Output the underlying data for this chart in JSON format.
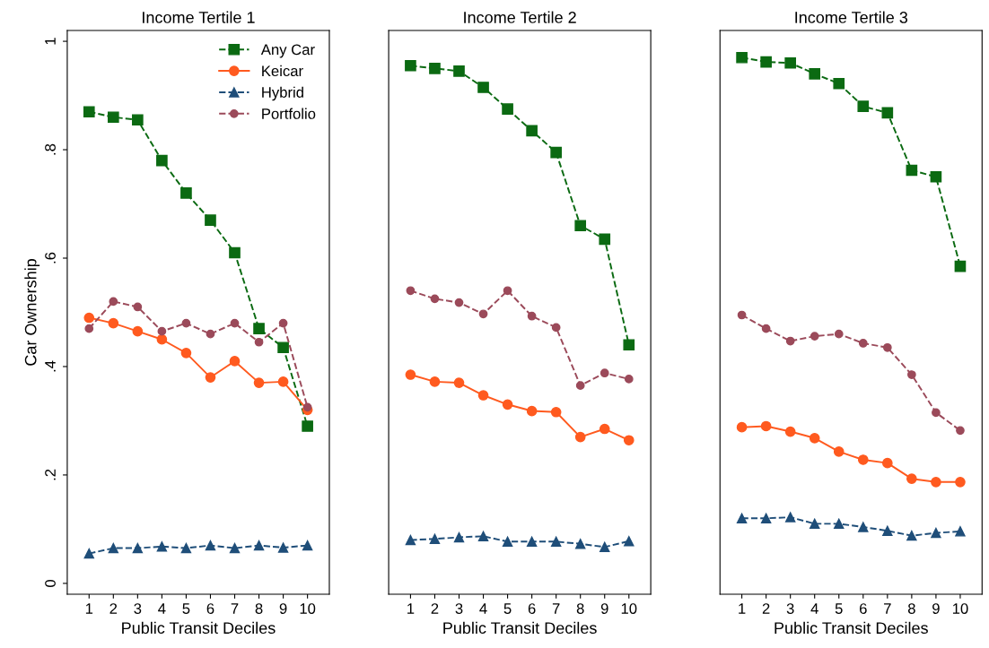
{
  "chart_data": [
    {
      "type": "line",
      "title": "Income Tertile 1",
      "xlabel": "Public Transit Deciles",
      "ylabel": "Car Ownership",
      "x": [
        1,
        2,
        3,
        4,
        5,
        6,
        7,
        8,
        9,
        10
      ],
      "xlim": [
        0.1,
        10.9
      ],
      "xticks": [
        1,
        2,
        3,
        4,
        5,
        6,
        7,
        8,
        9,
        10
      ],
      "ylim": [
        -0.02,
        1.02
      ],
      "yticks": [
        {
          "value": 0,
          "label": "0"
        },
        {
          "value": 0.2,
          "label": ".2"
        },
        {
          "value": 0.4,
          "label": ".4"
        },
        {
          "value": 0.6,
          "label": ".6"
        },
        {
          "value": 0.8,
          "label": ".8"
        },
        {
          "value": 1,
          "label": "1"
        }
      ],
      "grid": false,
      "legend": "top right",
      "series": [
        {
          "name": "Any Car",
          "color": "#0b6a12",
          "marker": "square",
          "line_style": "dashed",
          "values": [
            0.87,
            0.86,
            0.855,
            0.78,
            0.72,
            0.67,
            0.61,
            0.47,
            0.435,
            0.29
          ]
        },
        {
          "name": "Keicar",
          "color": "#ff5a1f",
          "marker": "circle",
          "line_style": "solid",
          "values": [
            0.49,
            0.48,
            0.465,
            0.45,
            0.425,
            0.38,
            0.41,
            0.37,
            0.372,
            0.32
          ]
        },
        {
          "name": "Hybrid",
          "color": "#1f4e79",
          "marker": "triangle",
          "line_style": "dashed",
          "values": [
            0.055,
            0.065,
            0.065,
            0.068,
            0.065,
            0.07,
            0.065,
            0.07,
            0.066,
            0.07
          ]
        },
        {
          "name": "Portfolio",
          "color": "#9b4a5a",
          "marker": "circle",
          "line_style": "dashed",
          "values": [
            0.47,
            0.52,
            0.51,
            0.465,
            0.48,
            0.46,
            0.48,
            0.445,
            0.48,
            0.325
          ]
        }
      ]
    },
    {
      "type": "line",
      "title": "Income Tertile 2",
      "xlabel": "Public Transit Deciles",
      "x": [
        1,
        2,
        3,
        4,
        5,
        6,
        7,
        8,
        9,
        10
      ],
      "xlim": [
        0.1,
        10.9
      ],
      "xticks": [
        1,
        2,
        3,
        4,
        5,
        6,
        7,
        8,
        9,
        10
      ],
      "ylim": [
        -0.02,
        1.02
      ],
      "tick_labels": "x",
      "grid": false,
      "series": [
        {
          "color": "#0b6a12",
          "marker": "square",
          "line_style": "dashed",
          "values": [
            0.955,
            0.95,
            0.945,
            0.915,
            0.875,
            0.835,
            0.795,
            0.66,
            0.635,
            0.44
          ]
        },
        {
          "color": "#ff5a1f",
          "marker": "circle",
          "line_style": "solid",
          "values": [
            0.385,
            0.372,
            0.37,
            0.347,
            0.33,
            0.318,
            0.316,
            0.27,
            0.285,
            0.264
          ]
        },
        {
          "color": "#1f4e79",
          "marker": "triangle",
          "line_style": "dashed",
          "values": [
            0.08,
            0.082,
            0.085,
            0.087,
            0.077,
            0.077,
            0.077,
            0.073,
            0.067,
            0.078
          ]
        },
        {
          "color": "#9b4a5a",
          "marker": "circle",
          "line_style": "dashed",
          "values": [
            0.54,
            0.525,
            0.518,
            0.497,
            0.54,
            0.493,
            0.472,
            0.365,
            0.388,
            0.377
          ]
        }
      ]
    },
    {
      "type": "line",
      "title": "Income Tertile 3",
      "xlabel": "Public Transit Deciles",
      "x": [
        1,
        2,
        3,
        4,
        5,
        6,
        7,
        8,
        9,
        10
      ],
      "xlim": [
        0.1,
        10.9
      ],
      "xticks": [
        1,
        2,
        3,
        4,
        5,
        6,
        7,
        8,
        9,
        10
      ],
      "ylim": [
        -0.02,
        1.02
      ],
      "tick_labels": "x",
      "grid": false,
      "series": [
        {
          "color": "#0b6a12",
          "marker": "square",
          "line_style": "dashed",
          "values": [
            0.97,
            0.962,
            0.96,
            0.94,
            0.922,
            0.88,
            0.868,
            0.762,
            0.75,
            0.585
          ]
        },
        {
          "color": "#ff5a1f",
          "marker": "circle",
          "line_style": "solid",
          "values": [
            0.288,
            0.29,
            0.28,
            0.268,
            0.243,
            0.228,
            0.222,
            0.193,
            0.187,
            0.187
          ]
        },
        {
          "color": "#1f4e79",
          "marker": "triangle",
          "line_style": "dashed",
          "values": [
            0.12,
            0.12,
            0.122,
            0.11,
            0.11,
            0.104,
            0.097,
            0.088,
            0.093,
            0.096
          ]
        },
        {
          "color": "#9b4a5a",
          "marker": "circle",
          "line_style": "dashed",
          "values": [
            0.495,
            0.47,
            0.447,
            0.456,
            0.46,
            0.443,
            0.435,
            0.385,
            0.315,
            0.282
          ]
        }
      ]
    }
  ]
}
